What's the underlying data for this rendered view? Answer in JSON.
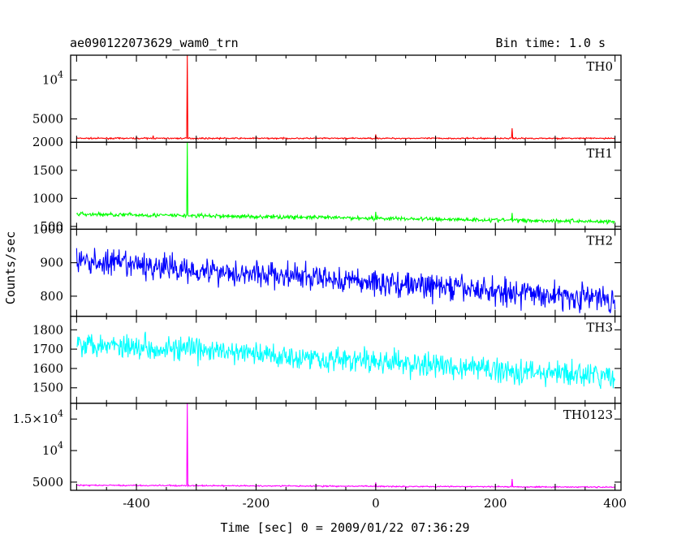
{
  "header": {
    "title": "ae090122073629_wam0_trn",
    "bin_time": "Bin time: 1.0 s"
  },
  "chart_data": {
    "type": "line",
    "xlabel": "Time [sec] 0 = 2009/01/22 07:36:29",
    "ylabel": "Counts/sec",
    "xlim": [
      -510,
      410
    ],
    "x_ticks": [
      -400,
      -200,
      0,
      200,
      400
    ],
    "x_start": -500,
    "x_end": 400,
    "bin": 1.0,
    "panels": [
      {
        "name": "TH0",
        "color": "#ff0000",
        "ylim": [
          2000,
          13200
        ],
        "y_ticks": [
          5000,
          10000
        ],
        "y_tick_labels": [
          "5000",
          "10^4"
        ],
        "baseline_start": 2500,
        "baseline_end": 2500,
        "noise": 60,
        "spikes": [
          [
            -315,
            13200
          ],
          [
            -372,
            2850
          ],
          [
            0,
            3000
          ],
          [
            228,
            3800
          ]
        ]
      },
      {
        "name": "TH1",
        "color": "#00ff00",
        "ylim": [
          450,
          2000
        ],
        "y_ticks": [
          500,
          1000,
          1500,
          2000
        ],
        "y_tick_labels": [
          "500",
          "1000",
          "1500",
          "2000"
        ],
        "baseline_start": 720,
        "baseline_end": 585,
        "noise": 25,
        "spikes": [
          [
            -315,
            2000
          ],
          [
            0,
            760
          ],
          [
            228,
            740
          ]
        ]
      },
      {
        "name": "TH2",
        "color": "#0000ff",
        "ylim": [
          740,
          1000
        ],
        "y_ticks": [
          800,
          900,
          1000
        ],
        "y_tick_labels": [
          "800",
          "900",
          "1000"
        ],
        "baseline_start": 905,
        "baseline_end": 790,
        "noise": 28,
        "spikes": []
      },
      {
        "name": "TH3",
        "color": "#00ffff",
        "ylim": [
          1420,
          1870
        ],
        "y_ticks": [
          1500,
          1600,
          1700,
          1800
        ],
        "y_tick_labels": [
          "1500",
          "1600",
          "1700",
          "1800"
        ],
        "baseline_start": 1735,
        "baseline_end": 1555,
        "noise": 45,
        "spikes": []
      },
      {
        "name": "TH0123",
        "color": "#ff00ff",
        "ylim": [
          3700,
          17500
        ],
        "y_ticks": [
          5000,
          10000,
          15000
        ],
        "y_tick_labels": [
          "5000",
          "10^4",
          "1.5×10^4"
        ],
        "baseline_start": 4500,
        "baseline_end": 4200,
        "noise": 70,
        "spikes": [
          [
            -315,
            17500
          ],
          [
            0,
            4950
          ],
          [
            228,
            5500
          ]
        ]
      }
    ]
  }
}
